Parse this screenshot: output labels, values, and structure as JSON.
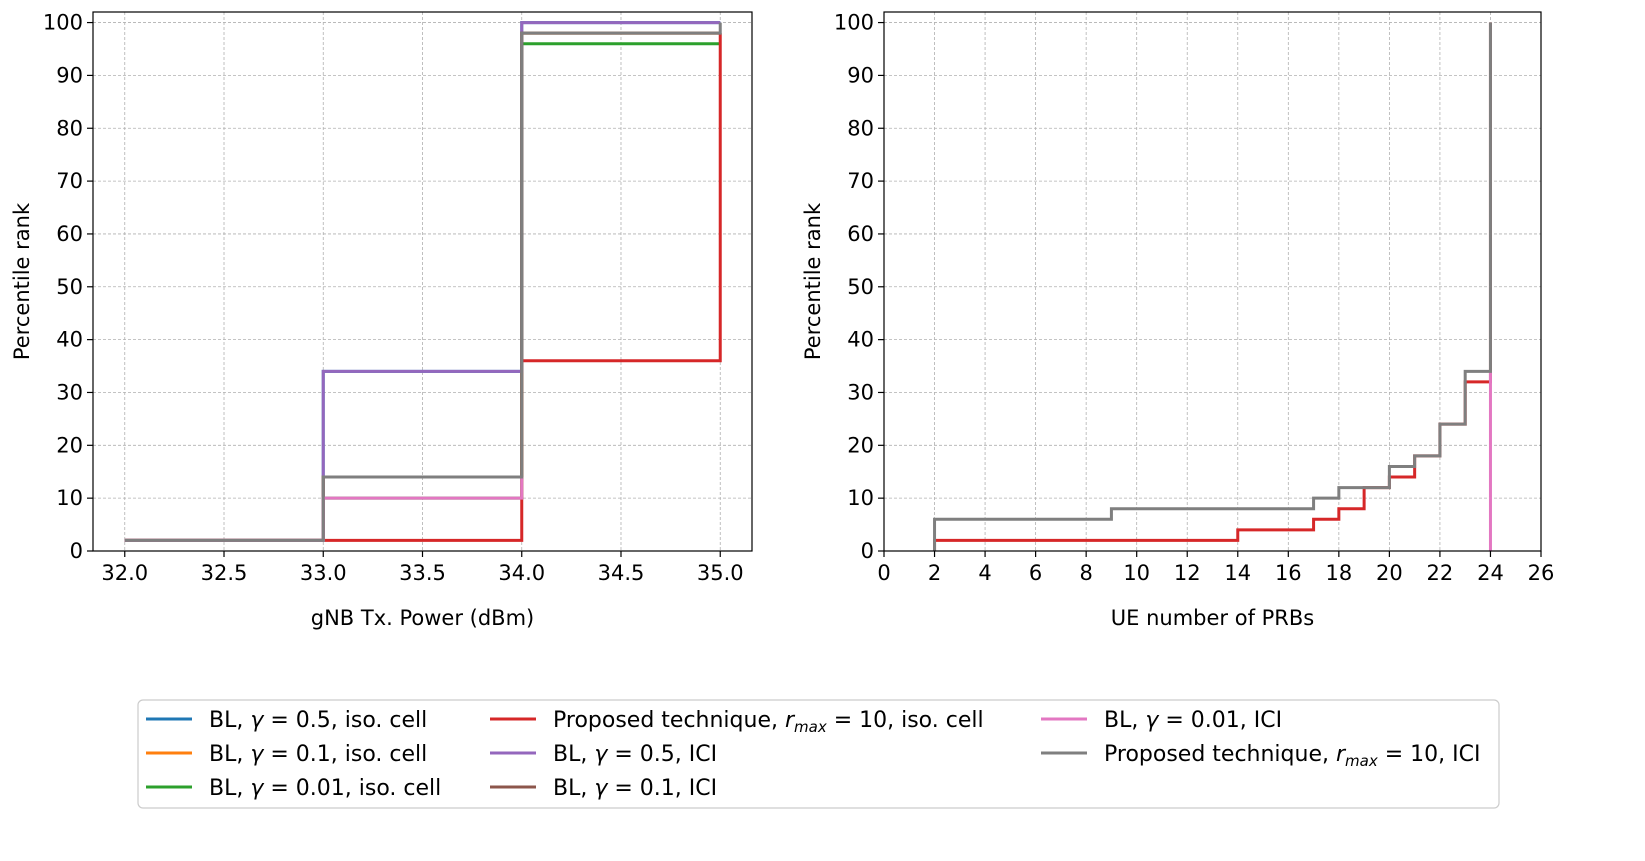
{
  "chart_data": [
    {
      "type": "line",
      "step": true,
      "title": "",
      "xlabel": "gNB Tx. Power (dBm)",
      "ylabel": "Percentile rank",
      "xlim": [
        31.84,
        35.16
      ],
      "ylim": [
        0,
        102
      ],
      "xticks": [
        32.0,
        32.5,
        33.0,
        33.5,
        34.0,
        34.5,
        35.0
      ],
      "xtick_labels": [
        "32.0",
        "32.5",
        "33.0",
        "33.5",
        "34.0",
        "34.5",
        "35.0"
      ],
      "yticks": [
        0,
        10,
        20,
        30,
        40,
        50,
        60,
        70,
        80,
        90,
        100
      ],
      "ytick_labels": [
        "0",
        "10",
        "20",
        "30",
        "40",
        "50",
        "60",
        "70",
        "80",
        "90",
        "100"
      ],
      "grid": true,
      "series": [
        {
          "name": "BL, γ = 0.5, iso. cell",
          "color": "#1f77b4",
          "points": [
            [
              32,
              2
            ],
            [
              33,
              2
            ],
            [
              33,
              34
            ],
            [
              34,
              34
            ],
            [
              34,
              100
            ],
            [
              35,
              100
            ]
          ]
        },
        {
          "name": "BL, γ = 0.1, iso. cell",
          "color": "#ff7f0e",
          "points": [
            [
              32,
              2
            ],
            [
              33,
              2
            ],
            [
              33,
              14
            ],
            [
              34,
              14
            ],
            [
              34,
              98
            ],
            [
              35,
              98
            ]
          ]
        },
        {
          "name": "BL, γ = 0.01, iso. cell",
          "color": "#2ca02c",
          "points": [
            [
              32,
              2
            ],
            [
              33,
              2
            ],
            [
              33,
              10
            ],
            [
              34,
              10
            ],
            [
              34,
              96
            ],
            [
              35,
              96
            ]
          ]
        },
        {
          "name": "Proposed technique, r_max = 10, iso. cell",
          "color": "#d62728",
          "points": [
            [
              32,
              2
            ],
            [
              33,
              2
            ],
            [
              34,
              2
            ],
            [
              34,
              36
            ],
            [
              35,
              36
            ],
            [
              35,
              98
            ]
          ]
        },
        {
          "name": "BL, γ = 0.5, ICI",
          "color": "#9467bd",
          "points": [
            [
              32,
              2
            ],
            [
              33,
              2
            ],
            [
              33,
              34
            ],
            [
              34,
              34
            ],
            [
              34,
              100
            ],
            [
              35,
              100
            ]
          ]
        },
        {
          "name": "BL, γ = 0.1, ICI",
          "color": "#8c564b",
          "points": [
            [
              32,
              2
            ],
            [
              33,
              2
            ],
            [
              33,
              14
            ],
            [
              34,
              14
            ],
            [
              34,
              98
            ],
            [
              35,
              98
            ]
          ]
        },
        {
          "name": "BL, γ = 0.01, ICI",
          "color": "#e377c2",
          "points": [
            [
              32,
              2
            ],
            [
              33,
              2
            ],
            [
              33,
              10
            ],
            [
              34,
              10
            ],
            [
              34,
              14
            ]
          ]
        },
        {
          "name": "Proposed technique, r_max = 10, ICI",
          "color": "#7f7f7f",
          "points": [
            [
              32,
              2
            ],
            [
              33,
              2
            ],
            [
              33,
              14
            ],
            [
              34,
              14
            ],
            [
              34,
              98
            ],
            [
              35,
              98
            ],
            [
              35,
              100
            ]
          ]
        }
      ]
    },
    {
      "type": "line",
      "step": true,
      "title": "",
      "xlabel": "UE number of PRBs",
      "ylabel": "Percentile rank",
      "xlim": [
        0,
        26
      ],
      "ylim": [
        0,
        102
      ],
      "xticks": [
        0,
        2,
        4,
        6,
        8,
        10,
        12,
        14,
        16,
        18,
        20,
        22,
        24,
        26
      ],
      "xtick_labels": [
        "0",
        "2",
        "4",
        "6",
        "8",
        "10",
        "12",
        "14",
        "16",
        "18",
        "20",
        "22",
        "24",
        "26"
      ],
      "yticks": [
        0,
        10,
        20,
        30,
        40,
        50,
        60,
        70,
        80,
        90,
        100
      ],
      "ytick_labels": [
        "0",
        "10",
        "20",
        "30",
        "40",
        "50",
        "60",
        "70",
        "80",
        "90",
        "100"
      ],
      "grid": true,
      "series": [
        {
          "name": "Proposed technique, r_max = 10, iso. cell",
          "color": "#d62728",
          "points": [
            [
              2,
              0
            ],
            [
              2,
              2
            ],
            [
              14,
              2
            ],
            [
              14,
              4
            ],
            [
              17,
              4
            ],
            [
              17,
              6
            ],
            [
              18,
              6
            ],
            [
              18,
              8
            ],
            [
              19,
              8
            ],
            [
              19,
              12
            ],
            [
              20,
              12
            ],
            [
              20,
              14
            ],
            [
              21,
              14
            ],
            [
              21,
              18
            ],
            [
              22,
              18
            ],
            [
              22,
              24
            ],
            [
              23,
              24
            ],
            [
              23,
              32
            ],
            [
              24,
              32
            ],
            [
              24,
              100
            ]
          ]
        },
        {
          "name": "BL, γ = 0.01, ICI",
          "color": "#e377c2",
          "points": [
            [
              24,
              0
            ],
            [
              24,
              34
            ]
          ]
        },
        {
          "name": "Proposed technique, r_max = 10, ICI",
          "color": "#7f7f7f",
          "points": [
            [
              2,
              0
            ],
            [
              2,
              6
            ],
            [
              9,
              6
            ],
            [
              9,
              8
            ],
            [
              17,
              8
            ],
            [
              17,
              10
            ],
            [
              18,
              10
            ],
            [
              18,
              12
            ],
            [
              20,
              12
            ],
            [
              20,
              16
            ],
            [
              21,
              16
            ],
            [
              21,
              18
            ],
            [
              22,
              18
            ],
            [
              22,
              24
            ],
            [
              23,
              24
            ],
            [
              23,
              34
            ],
            [
              24,
              34
            ],
            [
              24,
              100
            ]
          ]
        }
      ]
    }
  ],
  "legend": {
    "placement": "bottom-center",
    "columns": [
      [
        {
          "color": "#1f77b4",
          "prefix": "BL, ",
          "sym": "γ",
          "sub": "",
          "eq": " = 0.5",
          "suffix": ", iso. cell"
        },
        {
          "color": "#ff7f0e",
          "prefix": "BL, ",
          "sym": "γ",
          "sub": "",
          "eq": " = 0.1",
          "suffix": ", iso. cell"
        },
        {
          "color": "#2ca02c",
          "prefix": "BL, ",
          "sym": "γ",
          "sub": "",
          "eq": " = 0.01",
          "suffix": ", iso. cell"
        }
      ],
      [
        {
          "color": "#d62728",
          "prefix": "Proposed technique, ",
          "sym": "r",
          "sub": "max",
          "eq": " = 10",
          "suffix": ", iso. cell"
        },
        {
          "color": "#9467bd",
          "prefix": "BL, ",
          "sym": "γ",
          "sub": "",
          "eq": " = 0.5",
          "suffix": ", ICI"
        },
        {
          "color": "#8c564b",
          "prefix": "BL, ",
          "sym": "γ",
          "sub": "",
          "eq": " = 0.1",
          "suffix": ", ICI"
        }
      ],
      [
        {
          "color": "#e377c2",
          "prefix": "BL, ",
          "sym": "γ",
          "sub": "",
          "eq": " = 0.01",
          "suffix": ", ICI"
        },
        {
          "color": "#7f7f7f",
          "prefix": "Proposed technique, ",
          "sym": "r",
          "sub": "max",
          "eq": " = 10",
          "suffix": ", ICI"
        }
      ]
    ]
  }
}
